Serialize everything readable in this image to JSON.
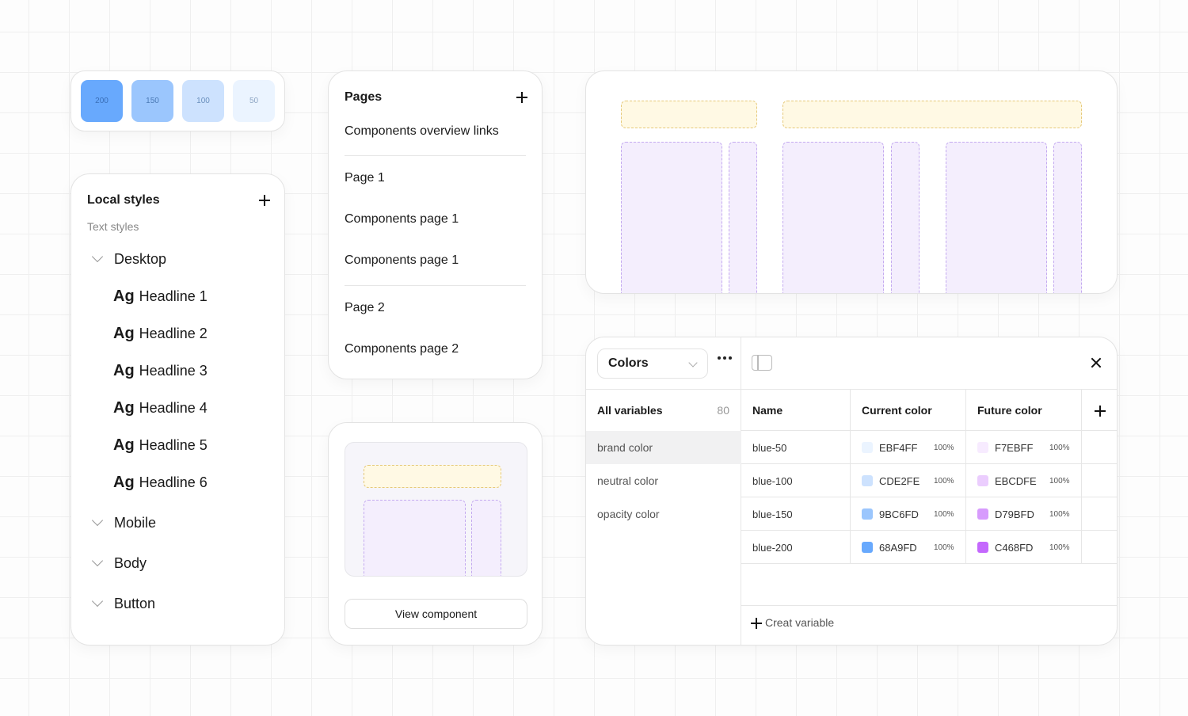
{
  "swatches": [
    {
      "label": "200",
      "color": "#68A9FD",
      "text": "#3a6fb8"
    },
    {
      "label": "150",
      "color": "#9BC6FD",
      "text": "#4a79b5"
    },
    {
      "label": "100",
      "color": "#CDE2FE",
      "text": "#6a8fbd"
    },
    {
      "label": "50",
      "color": "#EBF4FF",
      "text": "#8ea6c4"
    }
  ],
  "local_styles": {
    "title": "Local styles",
    "subtitle": "Text styles",
    "groups": [
      "Desktop",
      "Mobile",
      "Body",
      "Button"
    ],
    "ag": "Ag",
    "headlines": [
      "Headline 1",
      "Headline 2",
      "Headline 3",
      "Headline 4",
      "Headline 5",
      "Headline 6"
    ]
  },
  "pages": {
    "title": "Pages",
    "items": [
      "Components overview links",
      "Page 1",
      "Components page 1",
      "Components page 1",
      "Page 2",
      "Components page 2"
    ]
  },
  "component": {
    "button_label": "View component"
  },
  "colors_panel": {
    "collection": "Colors",
    "all_variables_label": "All variables",
    "all_variables_count": "80",
    "groups": [
      "brand color",
      "neutral color",
      "opacity color"
    ],
    "columns": [
      "Name",
      "Current color",
      "Future color"
    ],
    "rows": [
      {
        "name": "blue-50",
        "current": "EBF4FF",
        "current_pct": "100%",
        "future": "F7EBFF",
        "future_pct": "100%",
        "current_color": "#EBF4FF",
        "future_color": "#F7EBFF"
      },
      {
        "name": "blue-100",
        "current": "CDE2FE",
        "current_pct": "100%",
        "future": "EBCDFE",
        "future_pct": "100%",
        "current_color": "#CDE2FE",
        "future_color": "#EBCDFE"
      },
      {
        "name": "blue-150",
        "current": "9BC6FD",
        "current_pct": "100%",
        "future": "D79BFD",
        "future_pct": "100%",
        "current_color": "#9BC6FD",
        "future_color": "#D79BFD"
      },
      {
        "name": "blue-200",
        "current": "68A9FD",
        "current_pct": "100%",
        "future": "C468FD",
        "future_pct": "100%",
        "current_color": "#68A9FD",
        "future_color": "#C468FD"
      }
    ],
    "create_label": "Creat variable"
  },
  "icons": {
    "add": "plus-icon",
    "chevron": "chevron-down-icon",
    "more": "more-horizontal-icon",
    "panel": "sidebar-panel-icon",
    "close": "close-icon"
  }
}
